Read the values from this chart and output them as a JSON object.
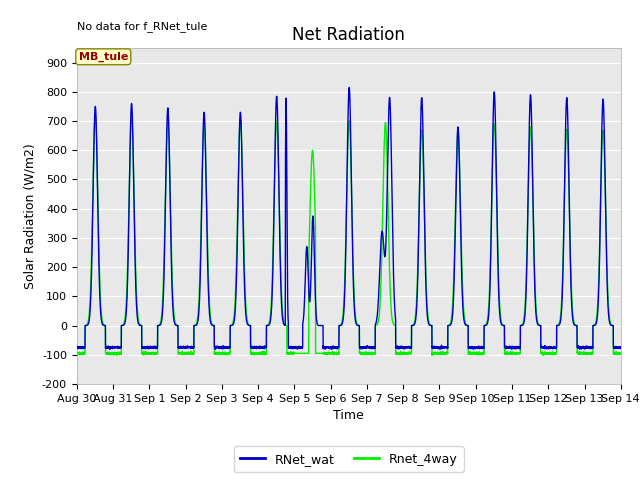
{
  "title": "Net Radiation",
  "xlabel": "Time",
  "ylabel": "Solar Radiation (W/m2)",
  "note": "No data for f_RNet_tule",
  "legend_label1": "RNet_wat",
  "legend_label2": "Rnet_4way",
  "legend_box_label": "MB_tule",
  "color1": "#0000cc",
  "color2": "#00ee00",
  "background_color": "#e8e8e8",
  "ylim": [
    -200,
    950
  ],
  "yticks": [
    -200,
    -100,
    0,
    100,
    200,
    300,
    400,
    500,
    600,
    700,
    800,
    900
  ],
  "xtick_labels": [
    "Aug 30",
    "Aug 31",
    "Sep 1",
    "Sep 2",
    "Sep 3",
    "Sep 4",
    "Sep 5",
    "Sep 6",
    "Sep 7",
    "Sep 8",
    "Sep 9",
    "Sep 10",
    "Sep 11",
    "Sep 12",
    "Sep 13",
    "Sep 14"
  ],
  "num_days": 15,
  "title_fontsize": 12,
  "axis_fontsize": 9,
  "tick_fontsize": 8
}
